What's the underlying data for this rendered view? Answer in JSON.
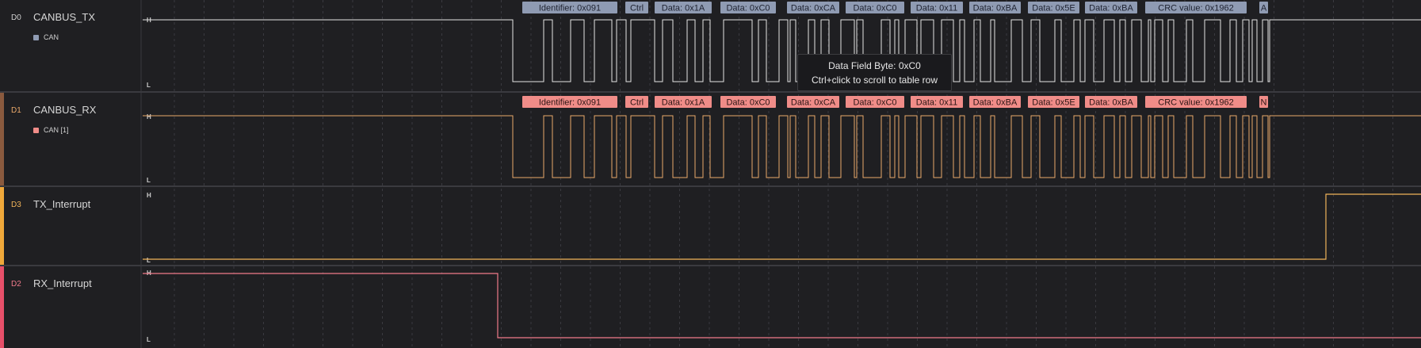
{
  "channels": [
    {
      "id": "D0",
      "name": "CANBUS_TX",
      "analyzer": "CAN",
      "color": "#e4e4e4",
      "id_color": "#cfcfcf",
      "accent": "#1f1f22",
      "sq_color": "#8f9bb3"
    },
    {
      "id": "D1",
      "name": "CANBUS_RX",
      "analyzer": "CAN [1]",
      "color": "#e9a86a",
      "id_color": "#e9a86a",
      "accent": "#8a5a3e",
      "sq_color": "#f08c88"
    },
    {
      "id": "D3",
      "name": "TX_Interrupt",
      "color": "#f0b35a",
      "id_color": "#f0b35a",
      "accent": "#f0a83a"
    },
    {
      "id": "D2",
      "name": "RX_Interrupt",
      "color": "#f07a8a",
      "id_color": "#f07a8a",
      "accent": "#e8506a"
    }
  ],
  "levels": {
    "high": "H",
    "low": "L"
  },
  "tx_frames": [
    "Identifier: 0x091",
    "Ctrl",
    "Data: 0x1A",
    "Data: 0xC0",
    "Data: 0xCA",
    "Data: 0xC0",
    "Data: 0x11",
    "Data: 0xBA",
    "Data: 0x5E",
    "Data: 0xBA",
    "CRC value: 0x1962",
    "A"
  ],
  "rx_frames": [
    "Identifier: 0x091",
    "Ctrl",
    "Data: 0x1A",
    "Data: 0xC0",
    "Data: 0xCA",
    "Data: 0xC0",
    "Data: 0x11",
    "Data: 0xBA",
    "Data: 0x5E",
    "Data: 0xBA",
    "CRC value: 0x1962",
    "N"
  ],
  "tooltip": {
    "line1": "Data Field Byte: 0xC0",
    "line2": "Ctrl+click to scroll to table row"
  },
  "colors": {
    "tx_bubble": "#8f9bb3",
    "tx_bubble_text": "#1e2230",
    "rx_bubble": "#f08c88",
    "rx_bubble_text": "#2a1414",
    "grid": "#3a3a40",
    "background": "#1f1f22"
  }
}
